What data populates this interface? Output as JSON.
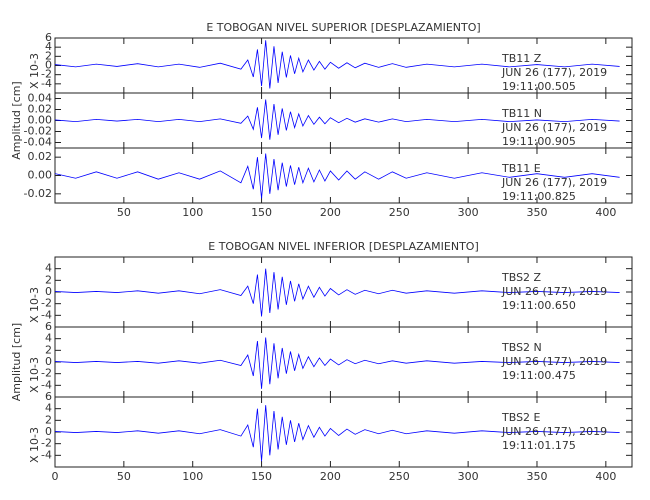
{
  "chart_data": [
    {
      "type": "line",
      "title": "E TOBOGAN NIVEL SUPERIOR [DESPLAZAMIENTO]",
      "multiplier": "X 10-3",
      "annotations": [
        "TB11   Z",
        "JUN 26 (177), 2019",
        "19:11:00.505"
      ],
      "xlim": [
        0,
        419
      ],
      "ylim": [
        -6,
        6
      ],
      "yticks": [
        -4,
        -2,
        0,
        2,
        4,
        6
      ],
      "color": "#0000ff",
      "x": [
        0,
        15,
        30,
        45,
        60,
        75,
        90,
        105,
        120,
        135,
        140,
        144,
        147,
        150,
        153,
        156,
        159,
        162,
        165,
        168,
        171,
        174,
        177,
        180,
        184,
        188,
        192,
        196,
        200,
        206,
        212,
        218,
        225,
        235,
        245,
        255,
        270,
        290,
        310,
        330,
        350,
        370,
        390,
        410
      ],
      "values": [
        0.2,
        -0.3,
        0.3,
        -0.2,
        0.4,
        -0.3,
        0.3,
        -0.4,
        0.5,
        -0.8,
        1.2,
        -2.5,
        3.5,
        -4.5,
        5.5,
        -5,
        4.2,
        -3.8,
        3,
        -2.6,
        2.2,
        -1.8,
        1.6,
        -1.4,
        1.2,
        -1,
        0.9,
        -0.8,
        0.7,
        -0.6,
        0.6,
        -0.5,
        0.5,
        -0.4,
        0.4,
        -0.4,
        0.3,
        -0.3,
        0.3,
        -0.3,
        0.2,
        -0.3,
        0.3,
        -0.2
      ]
    },
    {
      "type": "line",
      "ylabel": "Amplitud [cm]",
      "annotations": [
        "TB11   N",
        "JUN 26 (177), 2019",
        "19:11:00.905"
      ],
      "xlim": [
        0,
        419
      ],
      "ylim": [
        -0.05,
        0.05
      ],
      "yticks": [
        -0.04,
        -0.02,
        {
          "value": 0,
          "label": "0.00"
        },
        0.02,
        0.04
      ],
      "color": "#0000ff",
      "x": [
        0,
        15,
        30,
        45,
        60,
        75,
        90,
        105,
        120,
        135,
        140,
        144,
        147,
        150,
        153,
        156,
        159,
        162,
        165,
        168,
        171,
        174,
        177,
        180,
        184,
        188,
        192,
        196,
        200,
        206,
        212,
        218,
        225,
        235,
        245,
        255,
        270,
        290,
        310,
        330,
        350,
        370,
        390,
        410
      ],
      "values": [
        0.001,
        -0.002,
        0.002,
        -0.001,
        0.002,
        -0.002,
        0.002,
        -0.002,
        0.003,
        -0.005,
        0.008,
        -0.016,
        0.024,
        -0.032,
        0.038,
        -0.035,
        0.03,
        -0.026,
        0.022,
        -0.018,
        0.016,
        -0.013,
        0.012,
        -0.01,
        0.009,
        -0.007,
        0.006,
        -0.006,
        0.005,
        -0.004,
        0.004,
        -0.003,
        0.003,
        -0.003,
        0.003,
        -0.002,
        0.002,
        -0.002,
        0.002,
        -0.002,
        0.001,
        -0.002,
        0.002,
        -0.001
      ]
    },
    {
      "type": "line",
      "annotations": [
        "TB11   E",
        "JUN 26 (177), 2019",
        "19:11:00.825"
      ],
      "xlim": [
        0,
        419
      ],
      "xticks": [
        50,
        100,
        150,
        200,
        250,
        300,
        350,
        400
      ],
      "ylim": [
        -0.03,
        0.03
      ],
      "yticks": [
        -0.02,
        {
          "value": 0,
          "label": "0.00"
        },
        0.02
      ],
      "color": "#0000ff",
      "x": [
        0,
        15,
        30,
        45,
        60,
        75,
        90,
        105,
        120,
        135,
        140,
        144,
        147,
        150,
        153,
        156,
        159,
        162,
        165,
        168,
        171,
        174,
        177,
        180,
        184,
        188,
        192,
        196,
        200,
        206,
        212,
        218,
        225,
        235,
        245,
        255,
        270,
        290,
        310,
        330,
        350,
        370,
        390,
        410
      ],
      "values": [
        0.002,
        -0.003,
        0.004,
        -0.003,
        0.004,
        -0.004,
        0.003,
        -0.004,
        0.005,
        -0.008,
        0.01,
        -0.015,
        0.02,
        -0.025,
        0.024,
        -0.02,
        0.018,
        -0.016,
        0.014,
        -0.012,
        0.011,
        -0.01,
        0.009,
        -0.008,
        0.008,
        -0.007,
        0.006,
        -0.006,
        0.005,
        -0.005,
        0.005,
        -0.004,
        0.004,
        -0.004,
        0.004,
        -0.003,
        0.003,
        -0.003,
        0.003,
        -0.002,
        0.002,
        -0.002,
        0.002,
        -0.002
      ]
    },
    {
      "type": "line",
      "title": "E TOBOGAN NIVEL INFERIOR [DESPLAZAMIENTO]",
      "multiplier": "X 10-3",
      "annotations": [
        "TBS2   Z",
        "JUN 26 (177), 2019",
        "19:11:00.650"
      ],
      "xlim": [
        0,
        419
      ],
      "ylim": [
        -6,
        6
      ],
      "yticks": [
        -4,
        -2,
        0,
        2,
        4
      ],
      "color": "#0000ff",
      "x": [
        0,
        15,
        30,
        45,
        60,
        75,
        90,
        105,
        120,
        135,
        140,
        144,
        147,
        150,
        153,
        156,
        159,
        162,
        165,
        168,
        171,
        174,
        177,
        180,
        184,
        188,
        192,
        196,
        200,
        206,
        212,
        218,
        225,
        235,
        245,
        255,
        270,
        290,
        310,
        330,
        350,
        370,
        390,
        410
      ],
      "values": [
        0.1,
        -0.1,
        0.1,
        -0.1,
        0.2,
        -0.2,
        0.2,
        -0.3,
        0.4,
        -0.6,
        1,
        -2,
        3,
        -4.2,
        4,
        -3.6,
        3.4,
        -3,
        2.6,
        -2.2,
        1.9,
        -1.6,
        1.4,
        -1.2,
        1,
        -0.9,
        0.8,
        -0.7,
        0.6,
        -0.5,
        0.4,
        -0.4,
        0.3,
        -0.3,
        0.3,
        -0.2,
        0.2,
        -0.2,
        0.2,
        -0.1,
        0.1,
        -0.1,
        0.1,
        -0.1
      ]
    },
    {
      "type": "line",
      "ylabel": "Amplitud [cm]",
      "multiplier": "X 10-3",
      "annotations": [
        "TBS2   N",
        "JUN 26 (177), 2019",
        "19:11:00.475"
      ],
      "xlim": [
        0,
        419
      ],
      "ylim": [
        -6,
        6
      ],
      "yticks": [
        -4,
        -2,
        0,
        2,
        4,
        6
      ],
      "color": "#0000ff",
      "x": [
        0,
        15,
        30,
        45,
        60,
        75,
        90,
        105,
        120,
        135,
        140,
        144,
        147,
        150,
        153,
        156,
        159,
        162,
        165,
        168,
        171,
        174,
        177,
        180,
        184,
        188,
        192,
        196,
        200,
        206,
        212,
        218,
        225,
        235,
        245,
        255,
        270,
        290,
        310,
        330,
        350,
        370,
        390,
        410
      ],
      "values": [
        0.1,
        -0.1,
        0.1,
        -0.1,
        0.1,
        -0.2,
        0.2,
        -0.2,
        0.3,
        -0.6,
        1.2,
        -2.4,
        3.6,
        -4.6,
        4.2,
        -3.8,
        3.2,
        -2.8,
        2.4,
        -2,
        1.8,
        -1.5,
        1.3,
        -1.1,
        0.9,
        -0.8,
        0.7,
        -0.6,
        0.5,
        -0.5,
        0.4,
        -0.3,
        0.3,
        -0.3,
        0.2,
        -0.2,
        0.2,
        -0.2,
        0.1,
        -0.1,
        0.1,
        -0.1,
        0.1,
        -0.1
      ]
    },
    {
      "type": "line",
      "multiplier": "X 10-3",
      "annotations": [
        "TBS2   E",
        "JUN 26 (177), 2019",
        "19:11:01.175"
      ],
      "xlim": [
        0,
        419
      ],
      "xticks": [
        0,
        50,
        100,
        150,
        200,
        250,
        300,
        350,
        400
      ],
      "ylim": [
        -6,
        6
      ],
      "yticks": [
        -4,
        -2,
        0,
        2,
        4,
        6
      ],
      "color": "#0000ff",
      "x": [
        0,
        15,
        30,
        45,
        60,
        75,
        90,
        105,
        120,
        135,
        140,
        144,
        147,
        150,
        153,
        156,
        159,
        162,
        165,
        168,
        171,
        174,
        177,
        180,
        184,
        188,
        192,
        196,
        200,
        206,
        212,
        218,
        225,
        235,
        245,
        255,
        270,
        290,
        310,
        330,
        350,
        370,
        390,
        410
      ],
      "values": [
        0.1,
        -0.1,
        0.1,
        -0.1,
        0.2,
        -0.2,
        0.2,
        -0.3,
        0.4,
        -0.7,
        1.2,
        -2.6,
        4,
        -5,
        4.6,
        -4,
        3.6,
        -3,
        2.6,
        -2.2,
        2,
        -1.7,
        1.5,
        -1.3,
        1.1,
        -0.9,
        0.8,
        -0.7,
        0.6,
        -0.6,
        0.5,
        -0.4,
        0.4,
        -0.3,
        0.3,
        -0.3,
        0.2,
        -0.2,
        0.2,
        -0.1,
        0.1,
        -0.1,
        0.1,
        -0.1
      ]
    }
  ]
}
